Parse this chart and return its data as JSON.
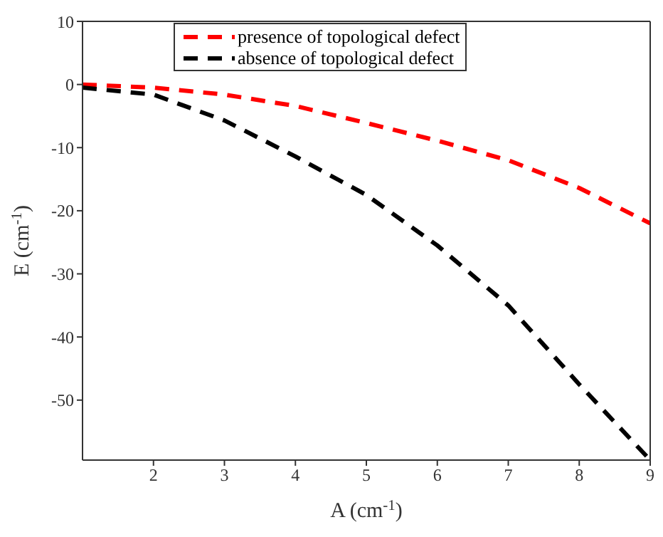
{
  "chart_data": {
    "type": "line",
    "xlabel": "A (cm$^{-1}$)",
    "ylabel": "E (cm$^{-1}$)",
    "x": [
      1,
      2,
      3,
      4,
      5,
      6,
      7,
      8,
      9
    ],
    "series": [
      {
        "name": "presence of topological defect",
        "color": "#ff0000",
        "values": [
          0,
          -0.5,
          -1.6,
          -3.4,
          -6.1,
          -8.9,
          -12,
          -16.4,
          -22
        ]
      },
      {
        "name": "absence of topological defect",
        "color": "#000000",
        "values": [
          -0.5,
          -1.6,
          -5.7,
          -11.4,
          -17.5,
          -25.5,
          -35,
          -47.5,
          -59.5
        ]
      }
    ],
    "xlim": [
      1,
      9
    ],
    "xticks": [
      2,
      3,
      4,
      5,
      6,
      7,
      8,
      9
    ],
    "ylim": [
      -59.5,
      10
    ],
    "yticks": [
      -50,
      -40,
      -30,
      -20,
      -10,
      0,
      10
    ],
    "line_style": "dashed",
    "marker": "none",
    "grid": false,
    "legend": "top"
  }
}
